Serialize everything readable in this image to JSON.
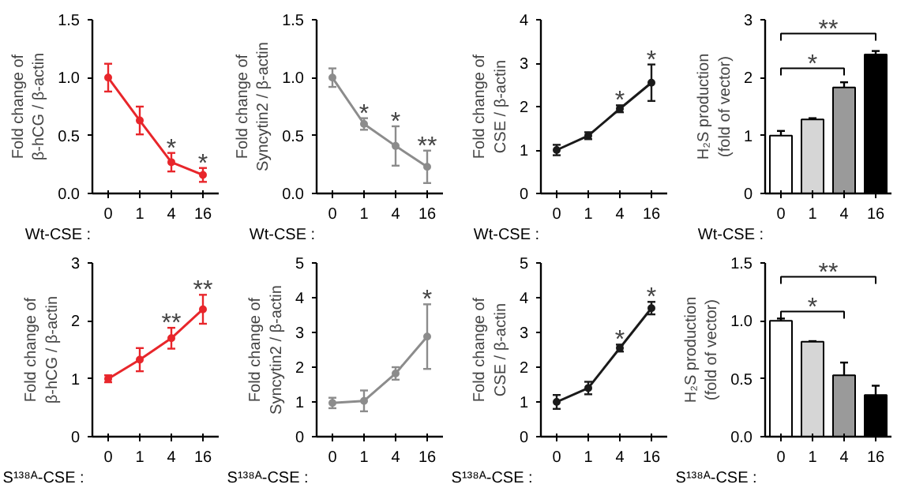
{
  "chart_data": [
    {
      "type": "line",
      "ylabel": "Fold change of\nβ-hCG / β-actin",
      "xlabel": "Wt-CSE :",
      "categories": [
        "0",
        "1",
        "4",
        "16"
      ],
      "values": [
        1.0,
        0.63,
        0.27,
        0.16
      ],
      "errors": [
        0.12,
        0.12,
        0.08,
        0.06
      ],
      "color": "#e8262b",
      "marker": "circle",
      "ylim": [
        0,
        1.5
      ],
      "yticks": [
        {
          "value": 0,
          "label": "0.0"
        },
        {
          "value": 0.5,
          "label": "0.5"
        },
        {
          "value": 1,
          "label": "1.0"
        },
        {
          "value": 1.5,
          "label": "1.5"
        }
      ],
      "grid": false,
      "annotations": [
        {
          "text": "*",
          "x": "4",
          "y": 0.35
        },
        {
          "text": "*",
          "x": "16",
          "y": 0.22
        }
      ]
    },
    {
      "type": "line",
      "ylabel": "Fold change of\nSyncytin2 / β-actin",
      "xlabel": "Wt-CSE :",
      "categories": [
        "0",
        "1",
        "4",
        "16"
      ],
      "values": [
        1.0,
        0.6,
        0.41,
        0.23
      ],
      "errors": [
        0.08,
        0.05,
        0.17,
        0.14
      ],
      "color": "#8c8c8c",
      "marker": "circle",
      "ylim": [
        0,
        1.5
      ],
      "yticks": [
        {
          "value": 0,
          "label": "0.0"
        },
        {
          "value": 0.5,
          "label": "0.5"
        },
        {
          "value": 1,
          "label": "1.0"
        },
        {
          "value": 1.5,
          "label": "1.5"
        }
      ],
      "grid": false,
      "annotations": [
        {
          "text": "*",
          "x": "1",
          "y": 0.65
        },
        {
          "text": "*",
          "x": "4",
          "y": 0.58
        },
        {
          "text": "**",
          "x": "16",
          "y": 0.37
        }
      ]
    },
    {
      "type": "line",
      "ylabel": "Fold change of\nCSE / β-actin",
      "xlabel": "Wt-CSE :",
      "categories": [
        "0",
        "1",
        "4",
        "16"
      ],
      "values": [
        1.0,
        1.33,
        1.95,
        2.55
      ],
      "errors": [
        0.12,
        0.08,
        0.08,
        0.42
      ],
      "color": "#1a1a1a",
      "marker": "circle",
      "ylim": [
        0,
        4
      ],
      "yticks": [
        0,
        1,
        2,
        3,
        4
      ],
      "grid": false,
      "annotations": [
        {
          "text": "*",
          "x": "4",
          "y": 2.03
        },
        {
          "text": "*",
          "x": "16",
          "y": 2.97
        }
      ]
    },
    {
      "type": "bar",
      "ylabel": "H₂S production\n(fold of vector)",
      "xlabel": "Wt-CSE :",
      "categories": [
        "0",
        "1",
        "4",
        "16"
      ],
      "values": [
        1.0,
        1.28,
        1.83,
        2.4
      ],
      "errors": [
        0.08,
        0.02,
        0.09,
        0.06
      ],
      "colors": [
        "#ffffff",
        "#d6d6d6",
        "#9a9a9a",
        "#000000"
      ],
      "ylim": [
        0,
        3
      ],
      "yticks": [
        0,
        1,
        2,
        3
      ],
      "grid": false,
      "annotations": [
        "*",
        "**"
      ]
    },
    {
      "type": "line",
      "ylabel": "Fold change of\nβ-hCG / β-actin",
      "xlabel": "S¹³⁸ᴬ-CSE :",
      "categories": [
        "0",
        "1",
        "4",
        "16"
      ],
      "values": [
        1.0,
        1.33,
        1.7,
        2.2
      ],
      "errors": [
        0.06,
        0.2,
        0.18,
        0.25
      ],
      "color": "#e8262b",
      "marker": "circle",
      "ylim": [
        0,
        3
      ],
      "yticks": [
        0,
        1,
        2,
        3
      ],
      "grid": false,
      "annotations": [
        {
          "text": "**",
          "x": "4",
          "y": 1.88
        },
        {
          "text": "**",
          "x": "16",
          "y": 2.45
        }
      ]
    },
    {
      "type": "line",
      "ylabel": "Fold change of\nSyncytin2 / β-actin",
      "xlabel": "S¹³⁸ᴬ-CSE :",
      "categories": [
        "0",
        "1",
        "4",
        "16"
      ],
      "values": [
        0.97,
        1.03,
        1.82,
        2.88
      ],
      "errors": [
        0.15,
        0.3,
        0.18,
        0.93
      ],
      "color": "#8c8c8c",
      "marker": "circle",
      "ylim": [
        0,
        5
      ],
      "yticks": [
        0,
        1,
        2,
        3,
        4,
        5
      ],
      "grid": false,
      "annotations": [
        {
          "text": "*",
          "x": "16",
          "y": 3.81
        }
      ]
    },
    {
      "type": "line",
      "ylabel": "Fold change of\nCSE / β-actin",
      "xlabel": "S¹³⁸ᴬ-CSE :",
      "categories": [
        "0",
        "1",
        "4",
        "16"
      ],
      "values": [
        1.0,
        1.4,
        2.55,
        3.7
      ],
      "errors": [
        0.2,
        0.18,
        0.1,
        0.18
      ],
      "color": "#1a1a1a",
      "marker": "circle",
      "ylim": [
        0,
        5
      ],
      "yticks": [
        0,
        1,
        2,
        3,
        4,
        5
      ],
      "grid": false,
      "annotations": [
        {
          "text": "*",
          "x": "4",
          "y": 2.65
        },
        {
          "text": "*",
          "x": "16",
          "y": 3.88
        }
      ]
    },
    {
      "type": "bar",
      "ylabel": "H₂S production\n(fold of vector)",
      "xlabel": "S¹³⁸ᴬ-CSE :",
      "categories": [
        "0",
        "1",
        "4",
        "16"
      ],
      "values": [
        1.0,
        0.82,
        0.53,
        0.36
      ],
      "errors": [
        0.02,
        0.005,
        0.11,
        0.08
      ],
      "colors": [
        "#ffffff",
        "#d6d6d6",
        "#9a9a9a",
        "#000000"
      ],
      "ylim": [
        0,
        1.5
      ],
      "yticks": [
        {
          "value": 0,
          "label": "0.0"
        },
        {
          "value": 0.5,
          "label": "0.5"
        },
        {
          "value": 1,
          "label": "1.0"
        },
        {
          "value": 1.5,
          "label": "1.5"
        }
      ],
      "grid": false,
      "annotations": [
        "*",
        "**"
      ]
    }
  ]
}
